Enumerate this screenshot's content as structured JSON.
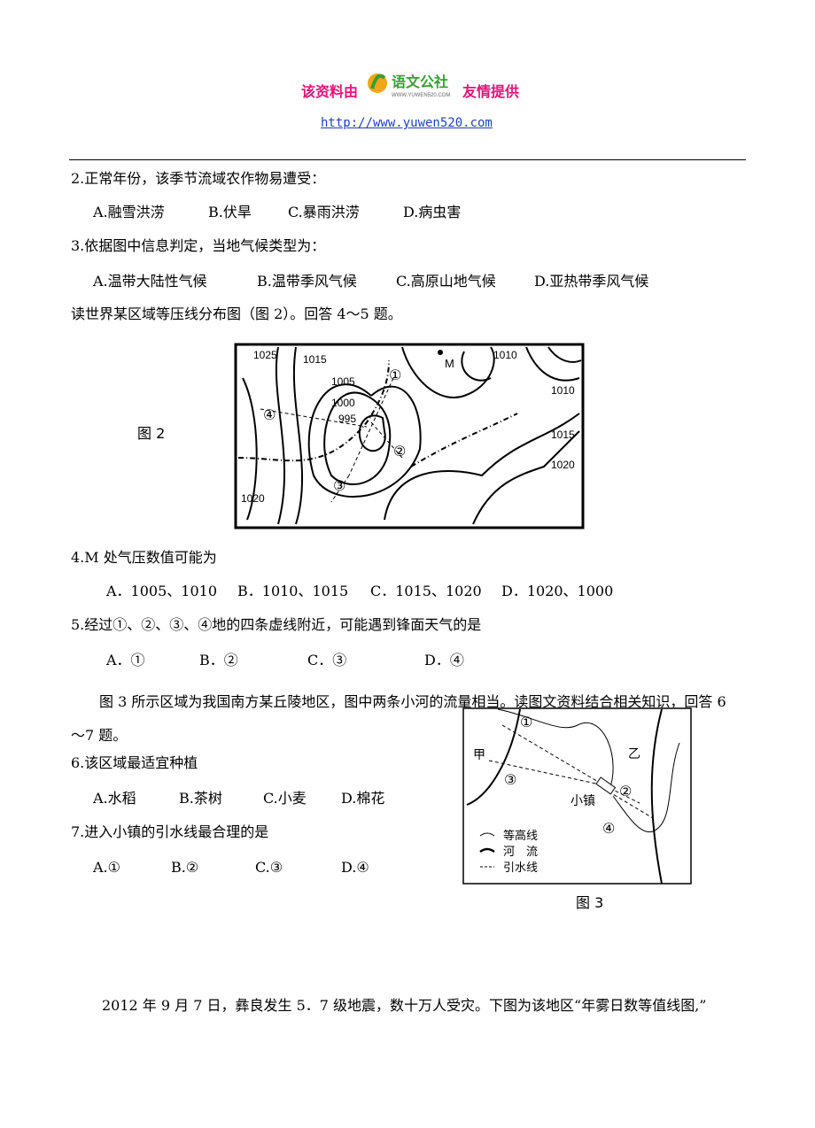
{
  "header": {
    "prefix": "该资料由",
    "logo_cn": "语文公社",
    "logo_en": "WWW.YUWEN520.COM",
    "suffix": "友情提供",
    "url": "http://www.yuwen520.com"
  },
  "questions": [
    {
      "stem": "2.正常年份，该季节流域农作物易遭受：",
      "options": [
        "A.融雪洪涝",
        "B.伏旱",
        "C.暴雨洪涝",
        "D.病虫害"
      ]
    },
    {
      "stem": "3.依据图中信息判定，当地气候类型为：",
      "options": [
        "A.温带大陆性气候",
        "B.温带季风气候",
        "C.高原山地气候",
        "D.亚热带季风气候"
      ]
    },
    {
      "stem": "4.M 处气压数值可能为",
      "options": [
        "A．1005、1010",
        "B．1010、1015",
        "C．1015、1020",
        "D．1020、1000"
      ]
    },
    {
      "stem": "5.经过①、②、③、④地的四条虚线附近，可能遇到锋面天气的是",
      "options": [
        "A．①",
        "B．②",
        "C．③",
        "D．④"
      ]
    },
    {
      "stem": "6.该区域最适宜种植",
      "options": [
        "A.水稻",
        "B.茶树",
        "C.小麦",
        "D.棉花"
      ]
    },
    {
      "stem": "7.进入小镇的引水线最合理的是",
      "options": [
        "A.①",
        "B.②",
        "C.③",
        "D.④"
      ]
    }
  ],
  "sections": {
    "intro_4_5": "读世界某区域等压线分布图（图 2）。回答 4～5 题。",
    "intro_6_7": "图 3 所示区域为我国南方某丘陵地区，图中两条小河的流量相当。读图文资料结合相关知识，回答 6～7 题。",
    "closing": "2012 年 9 月 7 日，彝良发生 5．7 级地震，数十万人受灾。下图为该地区“年雾日数等值线图,”"
  },
  "figure2": {
    "caption": "图 2",
    "isobars": [
      "1025",
      "1015",
      "1005",
      "1000",
      "995",
      "1010",
      "1010",
      "1015",
      "1020",
      "1020"
    ],
    "point": "M",
    "markers": [
      "①",
      "②",
      "③",
      "④"
    ]
  },
  "figure3": {
    "caption": "图 3",
    "markers": [
      "①",
      "②",
      "③",
      "④"
    ],
    "places": [
      "甲",
      "乙",
      "小镇"
    ],
    "legend": [
      "等高线",
      "河　流",
      "引水线"
    ]
  }
}
